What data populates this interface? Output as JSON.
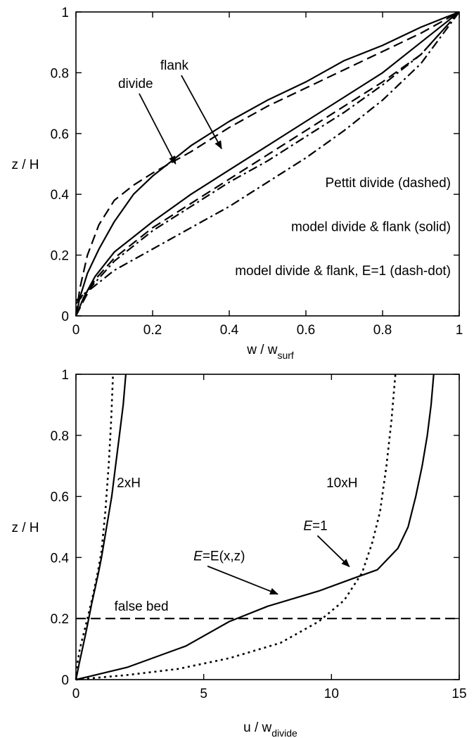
{
  "chart_data": [
    {
      "type": "line",
      "xlabel": "w / w",
      "xlabel_sub": "surf",
      "ylabel": "z / H",
      "xlim": [
        0,
        1
      ],
      "ylim": [
        0,
        1
      ],
      "xticks": [
        "0",
        "0.2",
        "0.4",
        "0.6",
        "0.8",
        "1"
      ],
      "yticks": [
        "0",
        "0.2",
        "0.4",
        "0.6",
        "0.8",
        "1"
      ],
      "grid": false,
      "legend": [
        {
          "text": "Pettit divide (dashed)"
        },
        {
          "text": "model divide & flank (solid)"
        },
        {
          "text": "model divide & flank, E=1 (dash-dot)"
        }
      ],
      "annotations": [
        {
          "text": "flank",
          "label_at": [
            0.22,
            0.81
          ],
          "arrow_to": [
            0.38,
            0.55
          ]
        },
        {
          "text": "divide",
          "label_at": [
            0.11,
            0.75
          ],
          "arrow_to": [
            0.26,
            0.5
          ]
        }
      ],
      "series": [
        {
          "style": "solid",
          "points": [
            [
              0,
              0
            ],
            [
              0.01,
              0.06
            ],
            [
              0.03,
              0.14
            ],
            [
              0.06,
              0.22
            ],
            [
              0.1,
              0.31
            ],
            [
              0.15,
              0.4
            ],
            [
              0.2,
              0.46
            ],
            [
              0.25,
              0.51
            ],
            [
              0.3,
              0.56
            ],
            [
              0.4,
              0.64
            ],
            [
              0.5,
              0.71
            ],
            [
              0.6,
              0.77
            ],
            [
              0.7,
              0.84
            ],
            [
              0.8,
              0.89
            ],
            [
              0.9,
              0.95
            ],
            [
              1,
              1
            ]
          ]
        },
        {
          "style": "solid",
          "points": [
            [
              0,
              0
            ],
            [
              0.02,
              0.06
            ],
            [
              0.05,
              0.13
            ],
            [
              0.1,
              0.21
            ],
            [
              0.15,
              0.26
            ],
            [
              0.2,
              0.31
            ],
            [
              0.3,
              0.4
            ],
            [
              0.4,
              0.48
            ],
            [
              0.5,
              0.56
            ],
            [
              0.6,
              0.64
            ],
            [
              0.7,
              0.72
            ],
            [
              0.8,
              0.8
            ],
            [
              0.9,
              0.9
            ],
            [
              1,
              1
            ]
          ]
        },
        {
          "style": "dashed",
          "points": [
            [
              0,
              0
            ],
            [
              0.01,
              0.09
            ],
            [
              0.03,
              0.2
            ],
            [
              0.06,
              0.3
            ],
            [
              0.1,
              0.38
            ],
            [
              0.15,
              0.43
            ],
            [
              0.2,
              0.47
            ],
            [
              0.3,
              0.54
            ],
            [
              0.4,
              0.62
            ],
            [
              0.5,
              0.69
            ],
            [
              0.6,
              0.75
            ],
            [
              0.7,
              0.81
            ],
            [
              0.8,
              0.87
            ],
            [
              0.9,
              0.93
            ],
            [
              1,
              1
            ]
          ]
        },
        {
          "style": "dashed",
          "points": [
            [
              0,
              0
            ],
            [
              0.02,
              0.05
            ],
            [
              0.05,
              0.12
            ],
            [
              0.1,
              0.19
            ],
            [
              0.2,
              0.29
            ],
            [
              0.3,
              0.37
            ],
            [
              0.4,
              0.45
            ],
            [
              0.5,
              0.53
            ],
            [
              0.6,
              0.61
            ],
            [
              0.7,
              0.69
            ],
            [
              0.8,
              0.77
            ],
            [
              0.9,
              0.86
            ],
            [
              1,
              1
            ]
          ]
        },
        {
          "style": "dashdot",
          "points": [
            [
              0,
              0.04
            ],
            [
              0.02,
              0.07
            ],
            [
              0.05,
              0.11
            ],
            [
              0.1,
              0.18
            ],
            [
              0.2,
              0.28
            ],
            [
              0.3,
              0.36
            ],
            [
              0.4,
              0.44
            ],
            [
              0.5,
              0.51
            ],
            [
              0.6,
              0.59
            ],
            [
              0.7,
              0.67
            ],
            [
              0.8,
              0.76
            ],
            [
              0.9,
              0.86
            ],
            [
              1,
              1
            ]
          ]
        },
        {
          "style": "dashdot",
          "points": [
            [
              0,
              0.05
            ],
            [
              0.05,
              0.1
            ],
            [
              0.1,
              0.15
            ],
            [
              0.2,
              0.22
            ],
            [
              0.3,
              0.29
            ],
            [
              0.4,
              0.36
            ],
            [
              0.5,
              0.44
            ],
            [
              0.6,
              0.52
            ],
            [
              0.7,
              0.61
            ],
            [
              0.8,
              0.71
            ],
            [
              0.9,
              0.83
            ],
            [
              1,
              1
            ]
          ]
        }
      ]
    },
    {
      "type": "line",
      "xlabel": "u / w",
      "xlabel_sub": "divide",
      "ylabel": "z / H",
      "xlim": [
        0,
        15
      ],
      "ylim": [
        0,
        1
      ],
      "xticks": [
        "0",
        "5",
        "10",
        "15"
      ],
      "yticks": [
        "0",
        "0.2",
        "0.4",
        "0.6",
        "0.8",
        "1"
      ],
      "grid": false,
      "hline": {
        "y": 0.2,
        "style": "dashed",
        "label": "false bed"
      },
      "text_labels": [
        {
          "text": "2xH",
          "at": [
            1.6,
            0.63
          ]
        },
        {
          "text": "10xH",
          "at": [
            9.8,
            0.63
          ]
        }
      ],
      "annotations": [
        {
          "text": "E",
          "suffix": "=1",
          "label_at": [
            8.9,
            0.49
          ],
          "arrow_to": [
            10.7,
            0.37
          ]
        },
        {
          "text": "E",
          "suffix": "=E(x,z)",
          "label_at": [
            4.6,
            0.39
          ],
          "arrow_to": [
            7.9,
            0.28
          ]
        }
      ],
      "series": [
        {
          "name": "2xH",
          "style": "solid",
          "points": [
            [
              0,
              0
            ],
            [
              0.12,
              0.05
            ],
            [
              0.25,
              0.1
            ],
            [
              0.38,
              0.15
            ],
            [
              0.5,
              0.2
            ],
            [
              0.62,
              0.25
            ],
            [
              0.75,
              0.3
            ],
            [
              0.88,
              0.35
            ],
            [
              1.0,
              0.4
            ],
            [
              1.2,
              0.5
            ],
            [
              1.4,
              0.6
            ],
            [
              1.55,
              0.7
            ],
            [
              1.7,
              0.8
            ],
            [
              1.85,
              0.9
            ],
            [
              1.95,
              1.0
            ]
          ]
        },
        {
          "name": "2xH",
          "style": "dotted",
          "points": [
            [
              0,
              0
            ],
            [
              0.05,
              0.05
            ],
            [
              0.15,
              0.1
            ],
            [
              0.3,
              0.15
            ],
            [
              0.45,
              0.2
            ],
            [
              0.65,
              0.27
            ],
            [
              0.85,
              0.35
            ],
            [
              1.0,
              0.42
            ],
            [
              1.15,
              0.55
            ],
            [
              1.28,
              0.7
            ],
            [
              1.38,
              0.85
            ],
            [
              1.45,
              1.0
            ]
          ]
        },
        {
          "name": "10xH",
          "style": "solid",
          "points": [
            [
              0,
              0
            ],
            [
              2.0,
              0.04
            ],
            [
              4.3,
              0.11
            ],
            [
              6.0,
              0.19
            ],
            [
              7.5,
              0.24
            ],
            [
              9.5,
              0.29
            ],
            [
              10.8,
              0.33
            ],
            [
              11.8,
              0.36
            ],
            [
              12.6,
              0.43
            ],
            [
              13.0,
              0.5
            ],
            [
              13.3,
              0.6
            ],
            [
              13.55,
              0.7
            ],
            [
              13.75,
              0.8
            ],
            [
              13.9,
              0.9
            ],
            [
              14.0,
              1.0
            ]
          ]
        },
        {
          "name": "10xH",
          "style": "dotted",
          "points": [
            [
              0,
              0
            ],
            [
              2.0,
              0.015
            ],
            [
              4.0,
              0.035
            ],
            [
              6.0,
              0.07
            ],
            [
              8.0,
              0.12
            ],
            [
              9.5,
              0.19
            ],
            [
              10.5,
              0.26
            ],
            [
              11.2,
              0.35
            ],
            [
              11.6,
              0.45
            ],
            [
              11.9,
              0.55
            ],
            [
              12.15,
              0.7
            ],
            [
              12.35,
              0.85
            ],
            [
              12.5,
              1.0
            ]
          ]
        }
      ]
    }
  ]
}
